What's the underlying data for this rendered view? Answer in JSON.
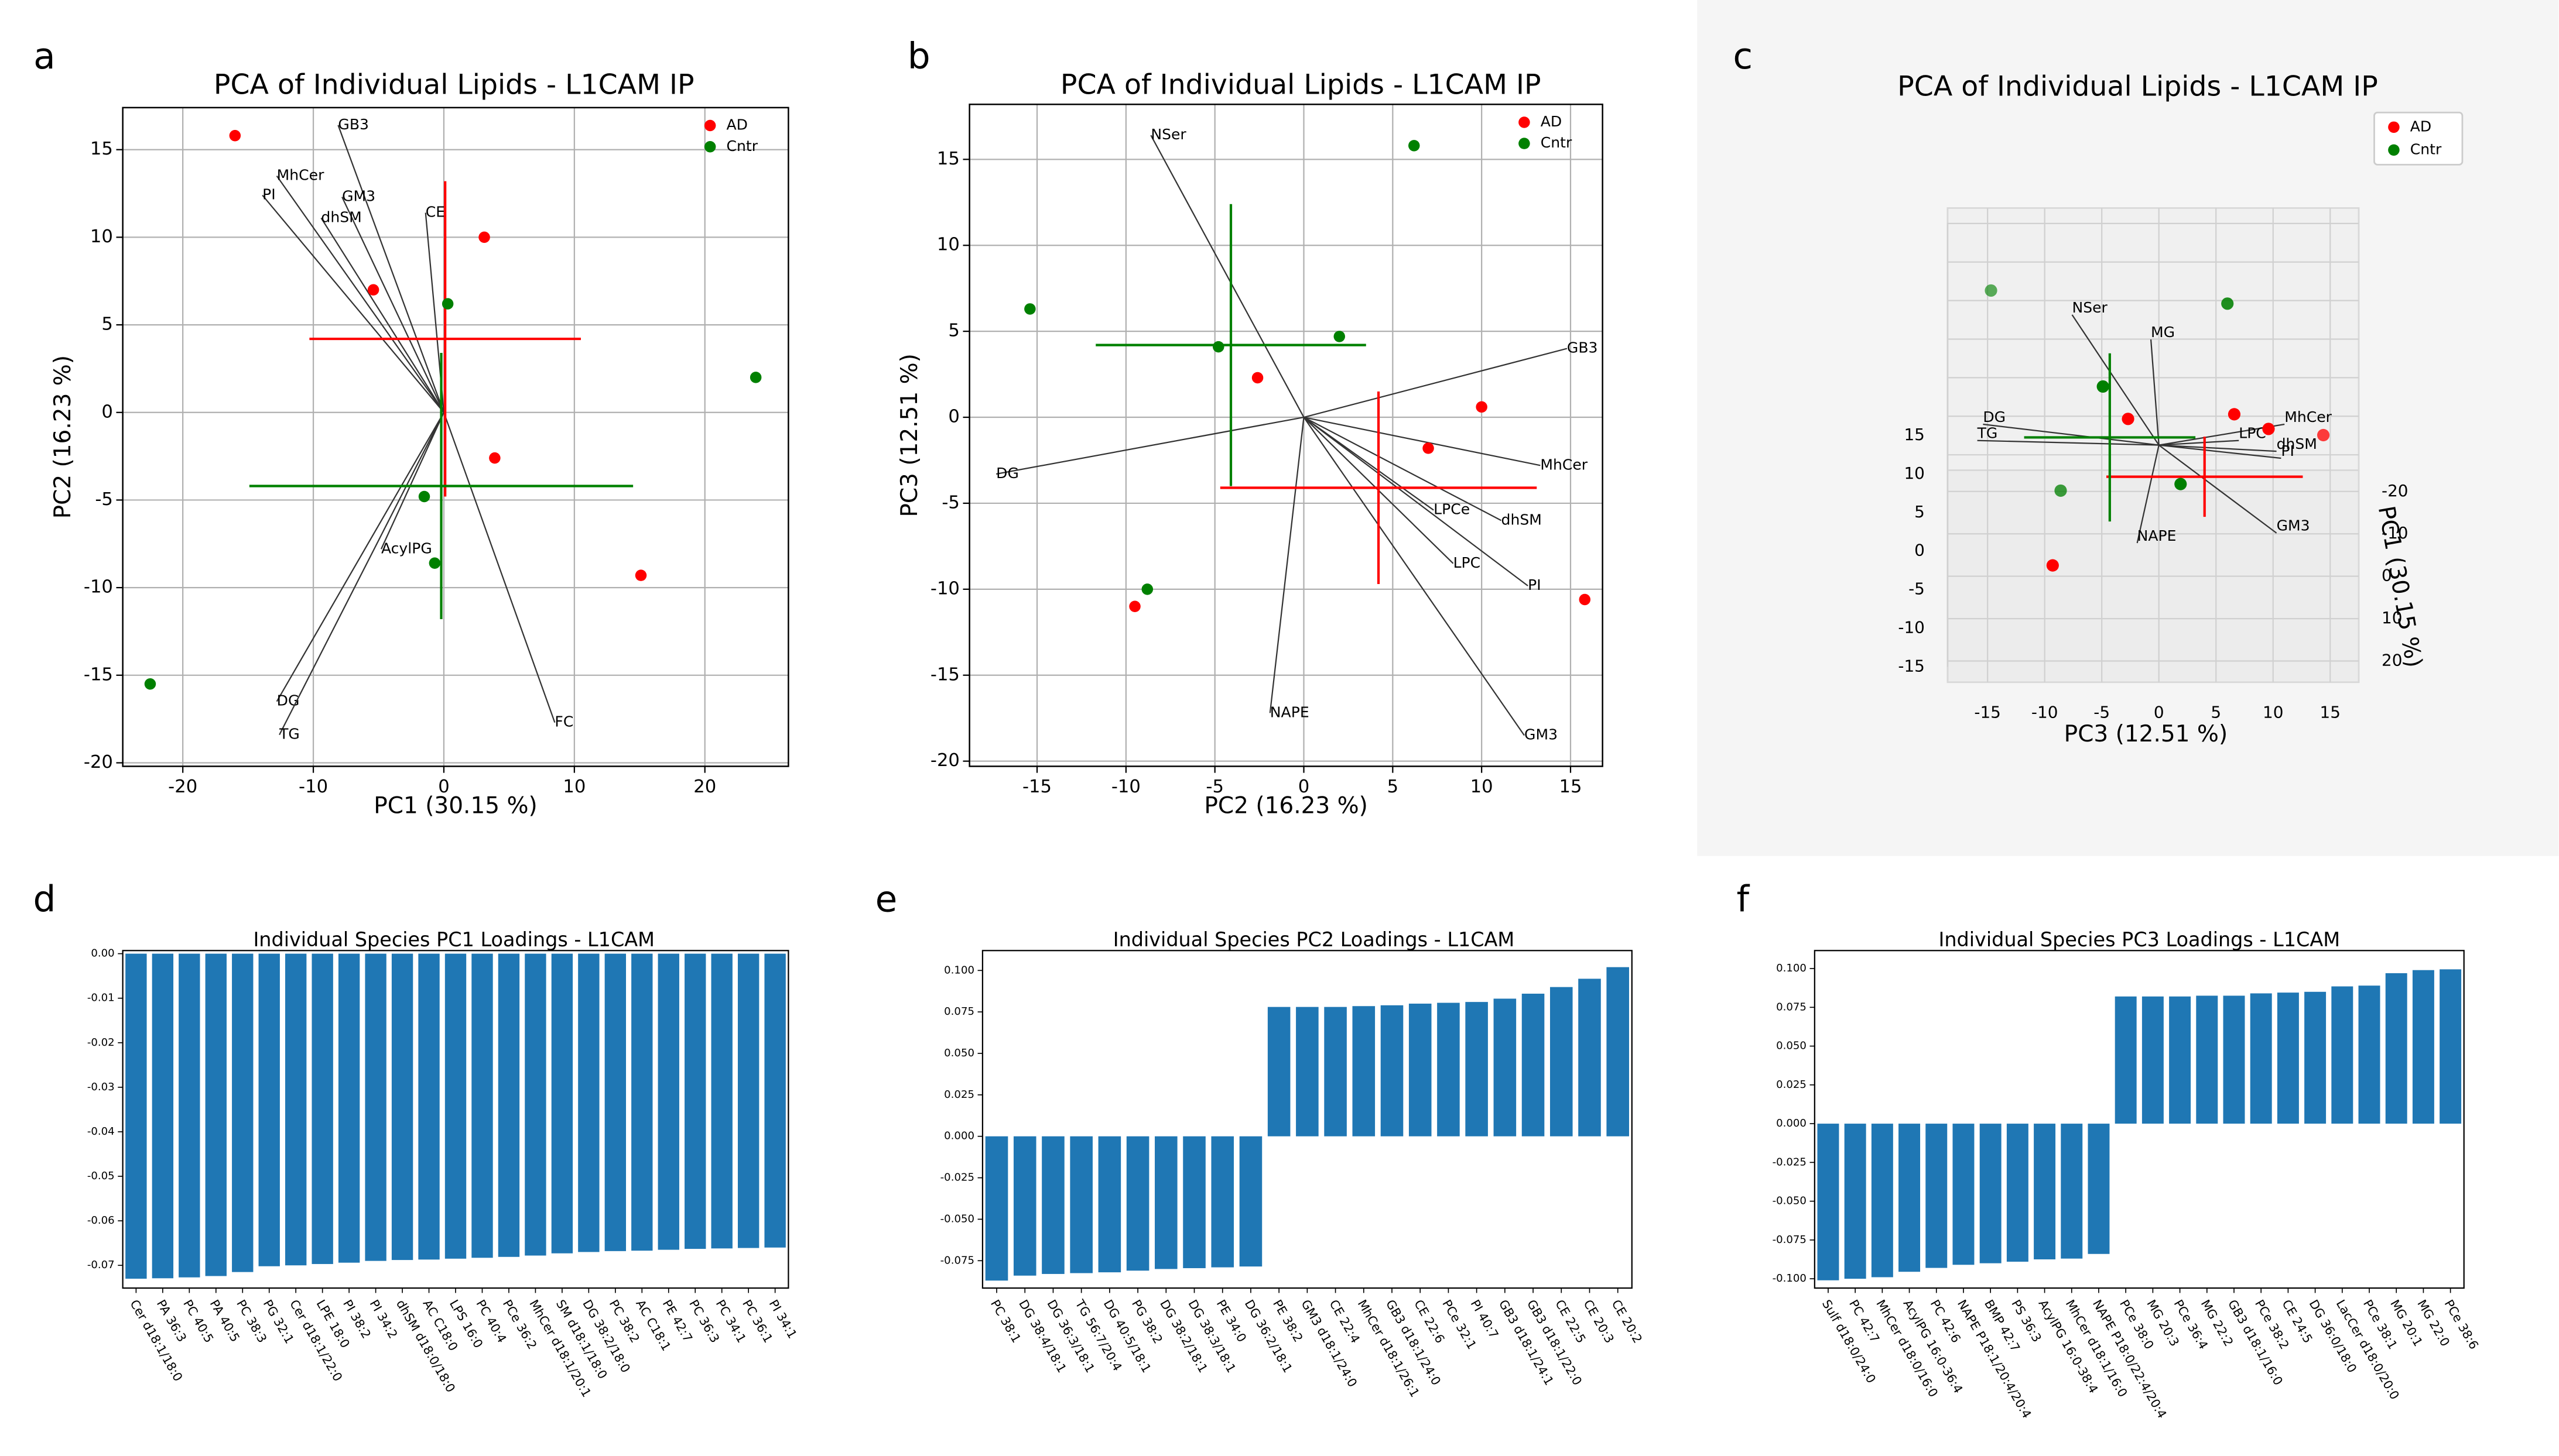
{
  "chart_data": [
    {
      "type": "biplot",
      "panel_label": "a",
      "title": "PCA of Individual Lipids - L1CAM IP",
      "xlabel": "PC1 (30.15 %)",
      "ylabel": "PC2 (16.23 %)",
      "xlim": [
        -24.6,
        26.4
      ],
      "ylim": [
        -20.2,
        17.4
      ],
      "xticks": [
        -20,
        -10,
        0,
        10,
        20
      ],
      "yticks": [
        -20,
        -15,
        -10,
        -5,
        0,
        5,
        10,
        15
      ],
      "grid": true,
      "legend": "upper right",
      "series": [
        {
          "name": "AD",
          "color": "#ff0000",
          "x": [
            -16,
            3.1,
            -5.4,
            3.9,
            15.1
          ],
          "y": [
            15.8,
            10,
            7,
            -2.6,
            -9.3
          ],
          "mean_x": 0.1,
          "mean_y": 4.2,
          "xerr": 10.4,
          "yerr": 9.0
        },
        {
          "name": "Cntr",
          "color": "#008000",
          "x": [
            0.3,
            23.9,
            -1.5,
            -0.7,
            -22.5
          ],
          "y": [
            6.2,
            2,
            -4.8,
            -8.6,
            -15.5
          ],
          "mean_x": -0.2,
          "mean_y": -4.2,
          "xerr": 14.7,
          "yerr": 7.6
        }
      ],
      "loadings": [
        {
          "name": "GB3",
          "x": -8.1,
          "y": 16.4
        },
        {
          "name": "MhCer",
          "x": -12.8,
          "y": 13.5
        },
        {
          "name": "PI",
          "x": -13.9,
          "y": 12.4
        },
        {
          "name": "GM3",
          "x": -7.8,
          "y": 12.3
        },
        {
          "name": "dhSM",
          "x": -9.4,
          "y": 11.1
        },
        {
          "name": "CE",
          "x": -1.4,
          "y": 11.4
        },
        {
          "name": "AcylPG",
          "x": -4.8,
          "y": -7.8
        },
        {
          "name": "DG",
          "x": -12.8,
          "y": -16.5
        },
        {
          "name": "TG",
          "x": -12.6,
          "y": -18.4
        },
        {
          "name": "FC",
          "x": 8.5,
          "y": -17.7
        }
      ]
    },
    {
      "type": "biplot",
      "panel_label": "b",
      "title": "PCA of Individual Lipids - L1CAM IP",
      "xlabel": "PC2 (16.23 %)",
      "ylabel": "PC3 (12.51 %)",
      "xlim": [
        -18.8,
        16.8
      ],
      "ylim": [
        -20.3,
        18.2
      ],
      "xticks": [
        -15,
        -10,
        -5,
        0,
        5,
        10,
        15
      ],
      "yticks": [
        -20,
        -15,
        -10,
        -5,
        0,
        5,
        10,
        15
      ],
      "grid": true,
      "legend": "upper right",
      "series": [
        {
          "name": "AD",
          "color": "#ff0000",
          "x": [
            -2.6,
            10,
            7,
            -9.5,
            15.8
          ],
          "y": [
            2.3,
            0.6,
            -1.8,
            -11,
            -10.6
          ],
          "mean_x": 4.2,
          "mean_y": -4.1,
          "xerr": 8.9,
          "yerr": 5.6
        },
        {
          "name": "Cntr",
          "color": "#008000",
          "x": [
            6.2,
            -15.4,
            -4.8,
            2,
            -8.8
          ],
          "y": [
            15.8,
            6.3,
            4.1,
            4.7,
            -10
          ],
          "mean_x": -4.1,
          "mean_y": 4.2,
          "xerr": 7.6,
          "yerr": 8.2
        }
      ],
      "loadings": [
        {
          "name": "NSer",
          "x": -8.6,
          "y": 16.4
        },
        {
          "name": "GB3",
          "x": 14.8,
          "y": 4.0
        },
        {
          "name": "DG",
          "x": -17.3,
          "y": -3.3
        },
        {
          "name": "MhCer",
          "x": 13.3,
          "y": -2.8
        },
        {
          "name": "LPCe",
          "x": 7.3,
          "y": -5.4
        },
        {
          "name": "dhSM",
          "x": 11.1,
          "y": -6.0
        },
        {
          "name": "LPC",
          "x": 8.4,
          "y": -8.5
        },
        {
          "name": "PI",
          "x": 12.6,
          "y": -9.8
        },
        {
          "name": "NAPE",
          "x": -1.9,
          "y": -17.2
        },
        {
          "name": "GM3",
          "x": 12.4,
          "y": -18.5
        }
      ]
    },
    {
      "type": "scatter3d",
      "panel_label": "c",
      "title": "PCA of Individual Lipids - L1CAM IP",
      "xlabel": "PC3 (12.51 %)",
      "zlabel": "PC1 (30.15 %)",
      "xlim": [
        -18.5,
        17.5
      ],
      "ylim": [
        -17,
        17
      ],
      "zlim": [
        -25,
        25
      ],
      "xticks": [
        -15,
        -10,
        -5,
        0,
        5,
        10,
        15
      ],
      "yticks": [
        15,
        10,
        5,
        0,
        -5,
        -10,
        -15
      ],
      "zticks": [
        -20,
        -10,
        0,
        10,
        20
      ],
      "grid": true,
      "legend": "upper right",
      "series": [
        {
          "name": "AD",
          "color": "#ff0000",
          "x": [
            -2.7,
            6.6,
            9.6,
            14.4,
            -9.3
          ],
          "y": [
            3.4,
            4.0,
            2.1,
            -4.2,
            -10.1
          ],
          "z": [
            0,
            0,
            0,
            -10,
            10
          ],
          "mean_x": 4.0,
          "mean_y": -4.1,
          "xerr": 8.6,
          "yerr": 5.2
        },
        {
          "name": "Cntr",
          "color": "#008000",
          "x": [
            -14.7,
            6,
            -4.9,
            1.9,
            -8.6
          ],
          "y": [
            11.8,
            15.6,
            7.6,
            -2.3,
            -11.4
          ],
          "z": [
            -15,
            -5,
            0,
            5,
            -10
          ],
          "mean_x": -4.3,
          "mean_y": 1.0,
          "xerr": 7.5,
          "yerr": 10.9
        }
      ],
      "loadings": [
        {
          "name": "NSer",
          "x": -7.6,
          "y": 16.9
        },
        {
          "name": "MG",
          "x": -0.7,
          "y": 13.7
        },
        {
          "name": "DG",
          "x": -15.4,
          "y": 2.7
        },
        {
          "name": "TG",
          "x": -15.9,
          "y": 0.6
        },
        {
          "name": "MhCer",
          "x": 11,
          "y": 2.7
        },
        {
          "name": "LPC",
          "x": 7,
          "y": 0.6
        },
        {
          "name": "dhSM",
          "x": 10.3,
          "y": -0.8
        },
        {
          "name": "PI",
          "x": 10.7,
          "y": -1.7
        },
        {
          "name": "GM3",
          "x": 10.3,
          "y": -11.4
        },
        {
          "name": "NAPE",
          "x": -1.9,
          "y": -12.7
        }
      ]
    },
    {
      "type": "bar",
      "panel_label": "d",
      "title": "Individual Species PC1 Loadings - L1CAM",
      "color": "#1f77b4",
      "categories": [
        "Cer d18:1/18:0",
        "PA 36:3",
        "PC 40:5",
        "PA 40:5",
        "PC 38:3",
        "PG 32:1",
        "Cer d18:1/22:0",
        "LPE 18:0",
        "PI 38:2",
        "PI 34:2",
        "dhSM d18:0/18:0",
        "AC C18:0",
        "LPS 16:0",
        "PC 40:4",
        "PCe 36:2",
        "MhCer d18:1/20:1",
        "SM d18:1/18:0",
        "DG 38:2/18:0",
        "PC 38:2",
        "AC C18:1",
        "PE 42:7",
        "PC 36:3",
        "PC 34:1",
        "PC 36:1",
        "PI 34:1"
      ],
      "values": [
        -0.073,
        -0.0729,
        -0.0727,
        -0.0724,
        -0.0715,
        -0.0702,
        -0.07,
        -0.0697,
        -0.0694,
        -0.069,
        -0.0688,
        -0.0687,
        -0.0685,
        -0.0683,
        -0.0681,
        -0.0678,
        -0.0673,
        -0.067,
        -0.0668,
        -0.0667,
        -0.0665,
        -0.0663,
        -0.0662,
        -0.0661,
        -0.066
      ],
      "ylim": [
        -0.0751,
        0.0007
      ],
      "yticks": [
        {
          "value": 0,
          "label": "0.00"
        },
        -0.01,
        -0.02,
        -0.03,
        -0.04,
        -0.05,
        -0.06,
        -0.07
      ]
    },
    {
      "type": "bar",
      "panel_label": "e",
      "title": "Individual Species PC2 Loadings - L1CAM",
      "color": "#1f77b4",
      "categories": [
        "PC 38:1",
        "DG 38:4/18:1",
        "DG 36:3/18:1",
        "TG 56:7/20:4",
        "DG 40:5/18:1",
        "PG 38:2",
        "DG 38:2/18:1",
        "DG 38:3/18:1",
        "PE 34:0",
        "DG 36:2/18:1",
        "PE 38:2",
        "GM3 d18:1/24:0",
        "CE 22:4",
        "MhCer d18:1/26:1",
        "GB3 d18:1/24:0",
        "CE 22:6",
        "PCe 32:1",
        "PI 40:7",
        "GB3 d18:1/24:1",
        "GB3 d18:1/22:0",
        "CE 22:5",
        "CE 20:3",
        "CE 20:2"
      ],
      "values": [
        -0.087,
        -0.084,
        -0.083,
        -0.0825,
        -0.082,
        -0.081,
        -0.08,
        -0.0795,
        -0.079,
        -0.0785,
        0.078,
        0.078,
        0.078,
        0.0785,
        0.079,
        0.08,
        0.0805,
        0.081,
        0.083,
        0.086,
        0.09,
        0.095,
        0.102
      ],
      "ylim": [
        -0.0915,
        0.112
      ],
      "yticks": [
        -0.075,
        {
          "value": -0.05,
          "label": "-0.050"
        },
        -0.025,
        {
          "value": 0,
          "label": "0.000"
        },
        0.025,
        {
          "value": 0.05,
          "label": "0.050"
        },
        0.075,
        {
          "value": 0.1,
          "label": "0.100"
        }
      ]
    },
    {
      "type": "bar",
      "panel_label": "f",
      "title": "Individual Species PC3 Loadings - L1CAM",
      "color": "#1f77b4",
      "categories": [
        "Sulf d18:0/24:0",
        "PC 42:7",
        "MhCer d18:0/16:0",
        "AcylPG 16:0-36:4",
        "PC 42:6",
        "NAPE P18:1/20:4/20:4",
        "BMP 42:7",
        "PS 36:3",
        "AcylPG 16:0-38:4",
        "MhCer d18:1/16:0",
        "NAPE P18:0/22:4/20:4",
        "PCe 38:0",
        "MG 20:3",
        "PCe 36:4",
        "MG 22:2",
        "GB3 d18:1/16:0",
        "PCe 38:2",
        "CE 24:5",
        "DG 36:0/18:0",
        "LacCer d18:0/20:0",
        "PCe 38:1",
        "MG 20:1",
        "MG 22:0",
        "PCe 38:6"
      ],
      "values": [
        -0.101,
        -0.1,
        -0.099,
        -0.0955,
        -0.093,
        -0.091,
        -0.09,
        -0.089,
        -0.0875,
        -0.087,
        -0.084,
        0.082,
        0.082,
        0.082,
        0.0825,
        0.0825,
        0.084,
        0.0845,
        0.085,
        0.0885,
        0.089,
        0.097,
        0.099,
        0.0995
      ],
      "ylim": [
        -0.106,
        0.1116
      ],
      "yticks": [
        {
          "value": -0.1,
          "label": "-0.100"
        },
        -0.075,
        {
          "value": -0.05,
          "label": "-0.050"
        },
        -0.025,
        {
          "value": 0,
          "label": "0.000"
        },
        0.025,
        {
          "value": 0.05,
          "label": "0.050"
        },
        0.075,
        {
          "value": 0.1,
          "label": "0.100"
        }
      ]
    }
  ]
}
